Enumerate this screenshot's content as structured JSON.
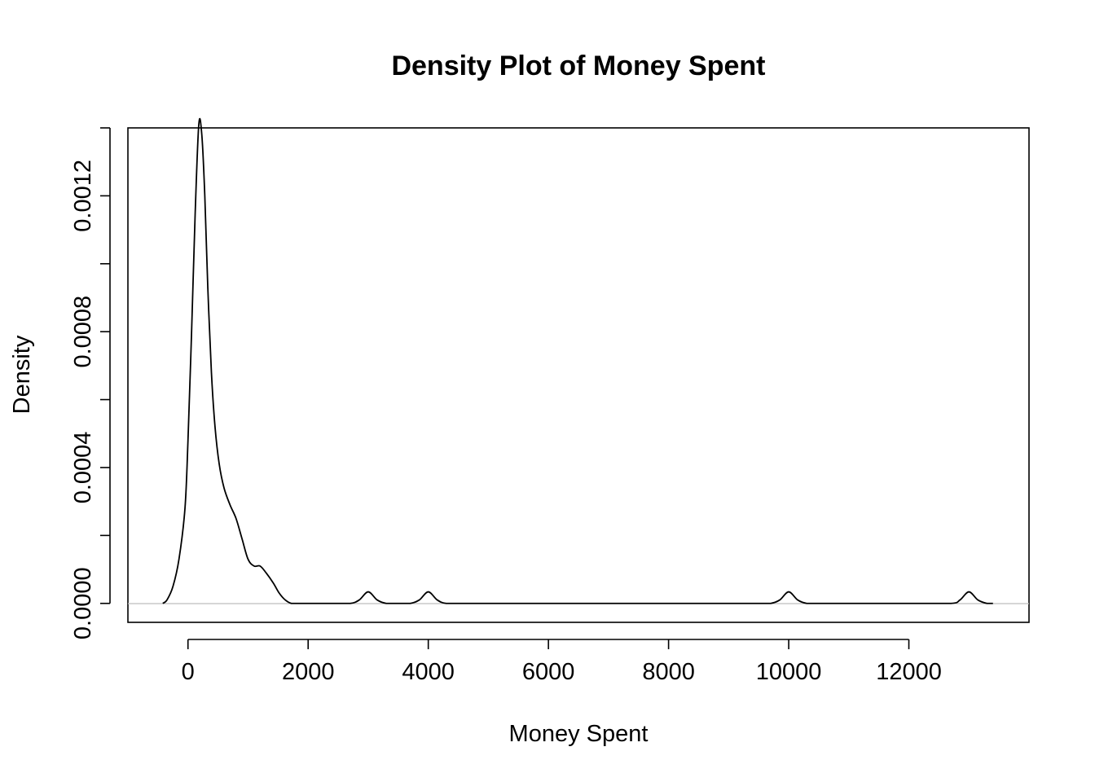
{
  "chart_data": {
    "type": "line",
    "title": "Density Plot of Money Spent",
    "xlabel": "Money Spent",
    "ylabel": "Density",
    "xlim": [
      -1000,
      14000
    ],
    "ylim": [
      -5.58e-05,
      0.0014
    ],
    "x_ticks": [
      0,
      2000,
      4000,
      6000,
      8000,
      10000,
      12000
    ],
    "x_tick_labels": [
      "0",
      "2000",
      "4000",
      "6000",
      "8000",
      "10000",
      "12000"
    ],
    "y_ticks": [
      0.0,
      0.0002,
      0.0004,
      0.0006,
      0.0008,
      0.001,
      0.0012,
      0.0014
    ],
    "y_tick_labels": [
      "0.0000",
      "",
      "0.0004",
      "",
      "0.0008",
      "",
      "0.0012",
      ""
    ],
    "grid": false,
    "baseline_at_zero": true,
    "colors": {
      "line": "#000000",
      "baseline": "#bebebe"
    },
    "series": [
      {
        "x": [
          -420,
          -350,
          -250,
          -150,
          -50,
          0,
          60,
          120,
          180,
          230,
          280,
          330,
          390,
          450,
          520,
          600,
          700,
          800,
          900,
          1000,
          1100,
          1200,
          1300,
          1420,
          1520,
          1620,
          1720,
          1820,
          2000,
          2400,
          2700,
          2850,
          3000,
          3150,
          3300,
          3500,
          3700,
          3850,
          4000,
          4150,
          4300,
          4600,
          6000,
          8000,
          9500,
          9700,
          9850,
          10000,
          10150,
          10300,
          10500,
          12000,
          12700,
          12850,
          13000,
          13150,
          13300,
          13400
        ],
        "y": [
          0.0,
          1e-05,
          5e-05,
          0.00013,
          0.00028,
          0.00048,
          0.0008,
          0.00115,
          0.00141,
          0.00138,
          0.0012,
          0.00093,
          0.00068,
          0.00052,
          0.00041,
          0.00034,
          0.00029,
          0.00025,
          0.00019,
          0.00013,
          0.00011,
          0.00011,
          9e-05,
          6e-05,
          3e-05,
          1e-05,
          0.0,
          0.0,
          0.0,
          0.0,
          0.0,
          1e-05,
          3.4e-05,
          1e-05,
          0.0,
          0.0,
          0.0,
          1e-05,
          3.4e-05,
          1e-05,
          0.0,
          0.0,
          0.0,
          0.0,
          0.0,
          0.0,
          1e-05,
          3.4e-05,
          1e-05,
          0.0,
          0.0,
          0.0,
          0.0,
          1e-05,
          3.4e-05,
          1e-05,
          0.0,
          0.0
        ]
      }
    ]
  }
}
